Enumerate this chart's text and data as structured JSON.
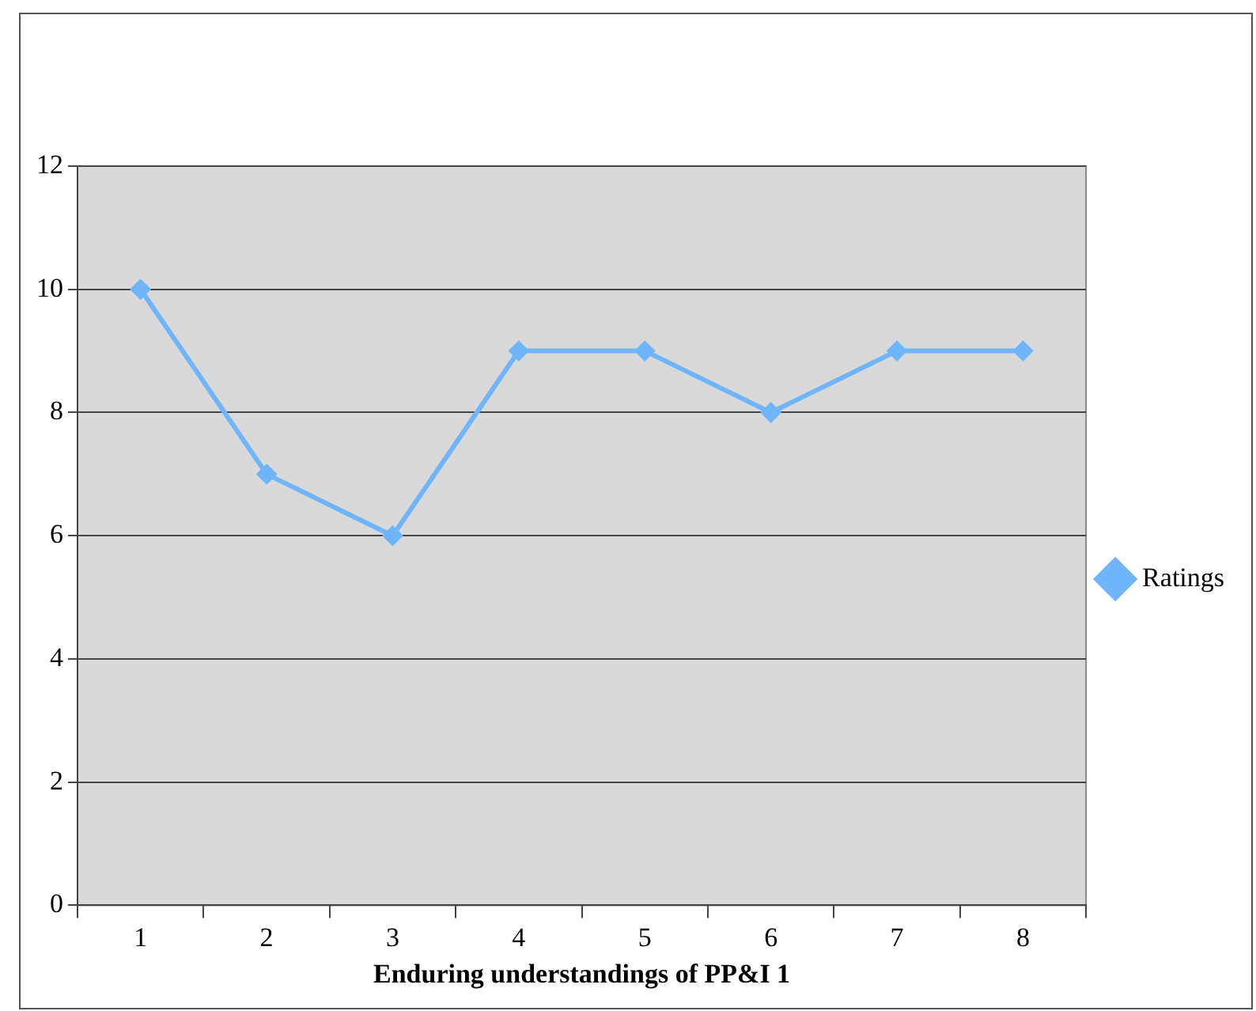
{
  "chart_data": {
    "type": "line",
    "xlabel": "Enduring understandings of PP&I 1",
    "categories": [
      "1",
      "2",
      "3",
      "4",
      "5",
      "6",
      "7",
      "8"
    ],
    "series": [
      {
        "name": "Ratings",
        "color": "#6fb5fb",
        "values": [
          10,
          7,
          6,
          9,
          9,
          8,
          9,
          9
        ]
      }
    ],
    "ylim": [
      0,
      12
    ],
    "yticks": [
      0,
      2,
      4,
      6,
      8,
      10,
      12
    ],
    "grid": "y",
    "legend": "right",
    "marker": "diamond"
  }
}
